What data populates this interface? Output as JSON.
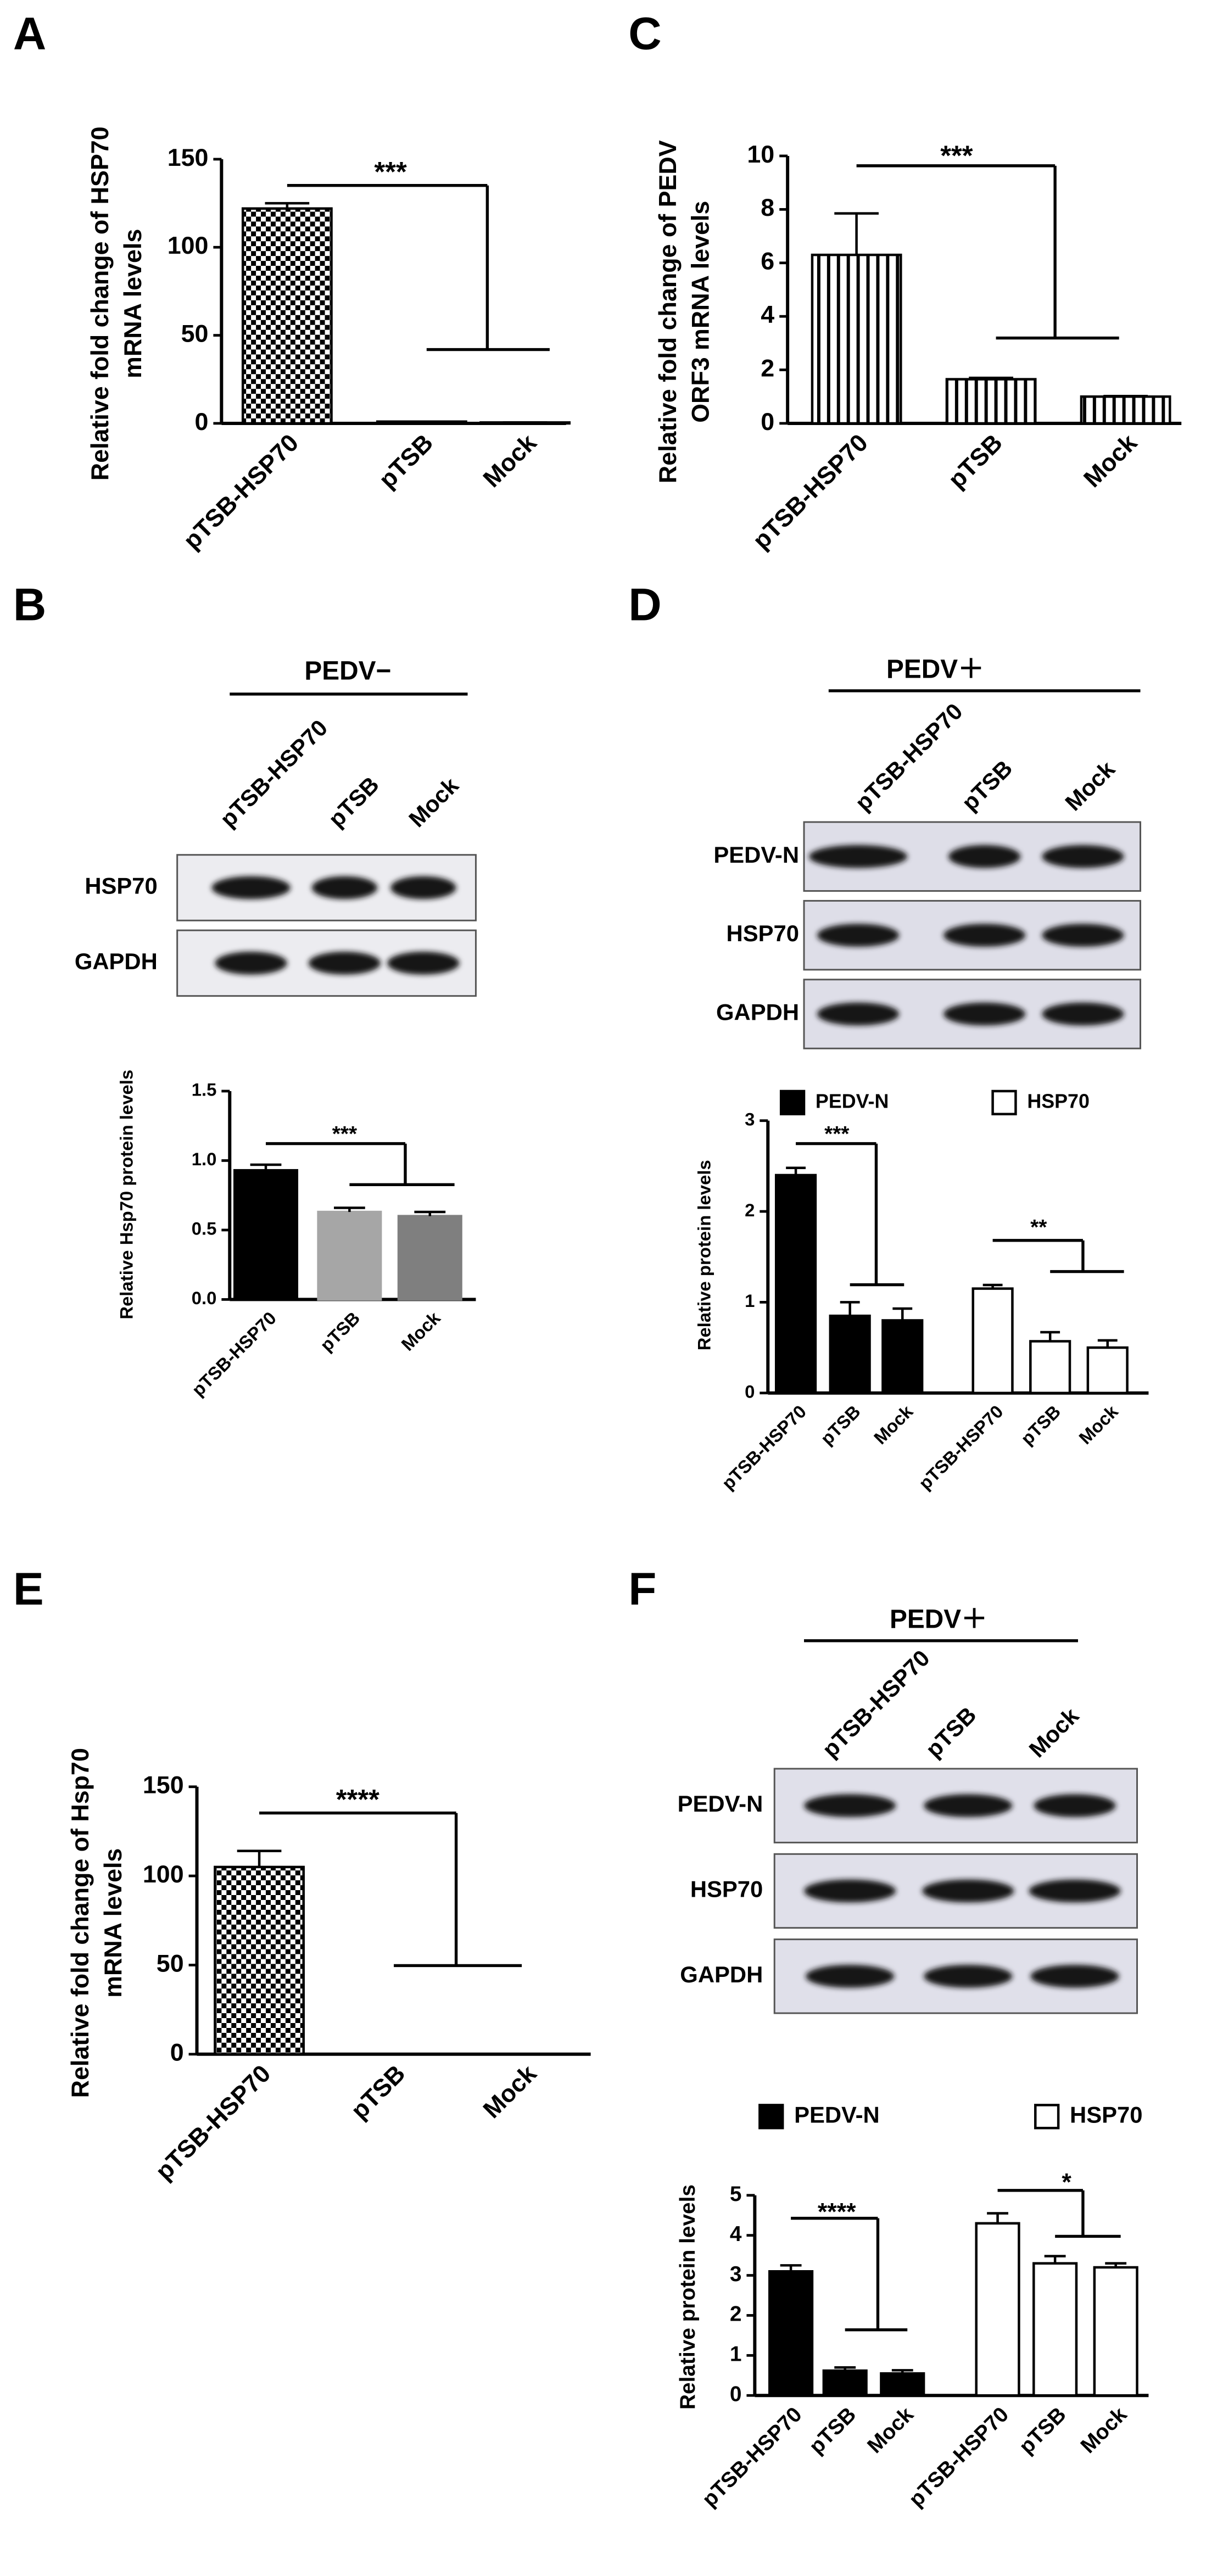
{
  "panel_labels": [
    "A",
    "B",
    "C",
    "D",
    "E",
    "F"
  ],
  "chart_data": [
    {
      "type": "bar",
      "ylabel": [
        "Relative fold change of HSP70",
        "mRNA levels"
      ],
      "categories": [
        "pTSB-HSP70",
        "pTSB",
        "Mock"
      ],
      "values": [
        122,
        1,
        0.5
      ],
      "errors": [
        3,
        0,
        0
      ],
      "color": "#000000",
      "pattern": "checker",
      "ylim": [
        0,
        150
      ],
      "yticks": [
        0,
        50,
        100,
        150
      ],
      "annotations": [
        "***"
      ]
    },
    {
      "type": "bar",
      "ylabel": [
        "Relative Hsp70 protein levels"
      ],
      "categories": [
        "pTSB-HSP70",
        "pTSB",
        "Mock"
      ],
      "values": [
        0.93,
        0.63,
        0.6
      ],
      "errors": [
        0.04,
        0.03,
        0.03
      ],
      "colors": [
        "#000000",
        "#a6a6a6",
        "#7f7f7f"
      ],
      "ylim": [
        0,
        1.5
      ],
      "yticks": [
        {
          "value": 0,
          "label": "0.0"
        },
        {
          "value": 0.5,
          "label": "0.5"
        },
        {
          "value": 1,
          "label": "1.0"
        },
        {
          "value": 1.5,
          "label": "1.5"
        }
      ],
      "annotations": [
        "***"
      ]
    },
    {
      "type": "bar",
      "ylabel": [
        "Relative fold change of PEDV",
        "ORF3 mRNA levels"
      ],
      "categories": [
        "pTSB-HSP70",
        "pTSB",
        "Mock"
      ],
      "values": [
        6.3,
        1.65,
        1.0
      ],
      "errors": [
        1.55,
        0.05,
        0.02
      ],
      "color": "#000000",
      "pattern": "stripes",
      "ylim": [
        0,
        10
      ],
      "yticks": [
        0,
        2,
        4,
        6,
        8,
        10
      ],
      "annotations": [
        "***"
      ]
    },
    {
      "type": "grouped_bar",
      "ylabel": [
        "Relative protein levels"
      ],
      "categories": [
        "pTSB-HSP70",
        "pTSB",
        "Mock"
      ],
      "series": [
        {
          "name": "PEDV-N",
          "color": "#000000",
          "values": [
            2.4,
            0.85,
            0.8
          ],
          "errors": [
            0.08,
            0.15,
            0.13
          ]
        },
        {
          "name": "HSP70",
          "color": "#ffffff",
          "values": [
            1.15,
            0.57,
            0.5
          ],
          "errors": [
            0.04,
            0.1,
            0.08
          ]
        }
      ],
      "legend": "top",
      "ylim": [
        0,
        3
      ],
      "yticks": [
        0,
        1,
        2,
        3
      ],
      "annotations": [
        "***",
        "**"
      ]
    },
    {
      "type": "bar",
      "ylabel": [
        "Relative fold change of Hsp70",
        "mRNA levels"
      ],
      "categories": [
        "pTSB-HSP70",
        "pTSB",
        "Mock"
      ],
      "values": [
        105,
        0,
        0
      ],
      "errors": [
        9,
        0,
        0
      ],
      "color": "#000000",
      "pattern": "checker",
      "ylim": [
        0,
        150
      ],
      "yticks": [
        0,
        50,
        100,
        150
      ],
      "annotations": [
        "****"
      ]
    },
    {
      "type": "grouped_bar",
      "ylabel": [
        "Relative protein levels"
      ],
      "categories": [
        "pTSB-HSP70",
        "pTSB",
        "Mock"
      ],
      "series": [
        {
          "name": "PEDV-N",
          "color": "#000000",
          "values": [
            3.1,
            0.62,
            0.55
          ],
          "errors": [
            0.15,
            0.08,
            0.08
          ]
        },
        {
          "name": "HSP70",
          "color": "#ffffff",
          "values": [
            4.3,
            3.3,
            3.2
          ],
          "errors": [
            0.25,
            0.18,
            0.1
          ]
        }
      ],
      "legend": "top",
      "ylim": [
        0,
        5
      ],
      "yticks": [
        0,
        1,
        2,
        3,
        4,
        5
      ],
      "annotations": [
        "****",
        "*"
      ]
    }
  ],
  "blots": [
    {
      "header": "PEDV−",
      "lanes": [
        "pTSB-HSP70",
        "pTSB",
        "Mock"
      ],
      "rows": [
        "HSP70",
        "GAPDH"
      ]
    },
    {
      "header": "PEDV＋",
      "lanes": [
        "pTSB-HSP70",
        "pTSB",
        "Mock"
      ],
      "rows": [
        "PEDV-N",
        "HSP70",
        "GAPDH"
      ]
    },
    {
      "header": "PEDV＋",
      "lanes": [
        "pTSB-HSP70",
        "pTSB",
        "Mock"
      ],
      "rows": [
        "PEDV-N",
        "HSP70",
        "GAPDH"
      ]
    }
  ]
}
